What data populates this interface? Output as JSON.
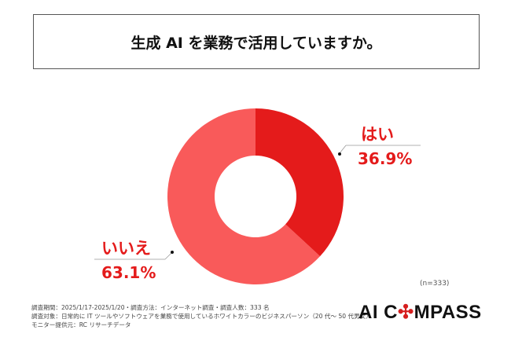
{
  "title": "生成 AI を業務で活用していますか。",
  "chart_data": {
    "type": "pie",
    "donut": true,
    "title": "生成 AI を業務で活用していますか。",
    "slices": [
      {
        "label": "はい",
        "value": 36.9,
        "display": "36.9%",
        "color": "#e41b1b"
      },
      {
        "label": "いいえ",
        "value": 63.1,
        "display": "63.1%",
        "color": "#f95a5a"
      }
    ],
    "sample": "(n=333)"
  },
  "notes": [
    "調査期間：2025/1/17-2025/1/20・調査方法：インターネット調査・調査人数：333 名",
    "調査対象：日常的に IT ツールやソフトウェアを業務で使用しているホワイトカラーのビジネスパーソン（20 代～ 50 代男女）",
    "モニター提供元：RC リサーチデータ"
  ],
  "logo": {
    "text": "AI COMPASS"
  }
}
